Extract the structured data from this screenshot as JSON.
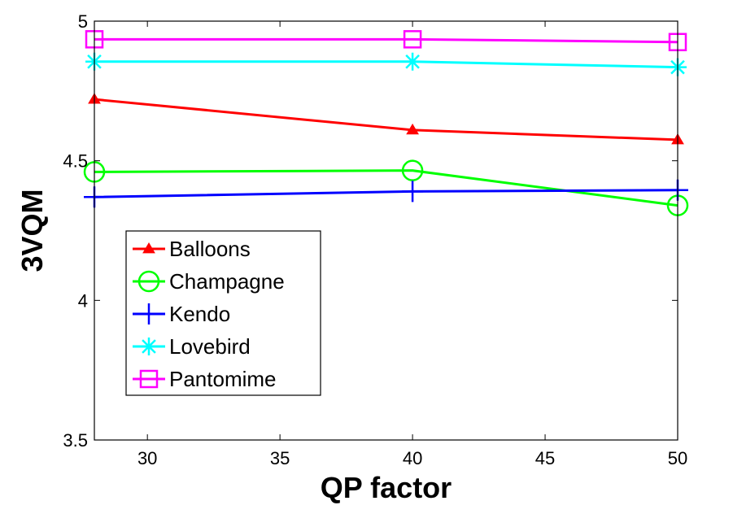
{
  "chart_data": {
    "type": "line",
    "title": "",
    "xlabel": "QP factor",
    "ylabel": "3VQM",
    "xlim": [
      28,
      50
    ],
    "ylim": [
      3.5,
      5
    ],
    "xticks": [
      30,
      35,
      40,
      45,
      50
    ],
    "xtick_labels": [
      "30",
      "35",
      "40",
      "45",
      "50"
    ],
    "yticks": [
      3.5,
      4,
      4.5,
      5
    ],
    "ytick_labels": [
      "3.5",
      "4",
      "4.5",
      "5"
    ],
    "grid": false,
    "legend_position": "lower-left",
    "x": [
      28,
      40,
      50
    ],
    "series": [
      {
        "name": "Balloons",
        "color": "#ff0000",
        "marker": "triangle",
        "values": [
          4.72,
          4.61,
          4.575
        ]
      },
      {
        "name": "Champagne",
        "color": "#00ff00",
        "marker": "circle",
        "values": [
          4.46,
          4.465,
          4.34
        ]
      },
      {
        "name": "Kendo",
        "color": "#0000ff",
        "marker": "plus",
        "values": [
          4.37,
          4.39,
          4.395
        ]
      },
      {
        "name": "Lovebird",
        "color": "#00ffff",
        "marker": "asterisk",
        "values": [
          4.855,
          4.855,
          4.835
        ]
      },
      {
        "name": "Pantomime",
        "color": "#ff00ff",
        "marker": "square",
        "values": [
          4.935,
          4.935,
          4.925
        ]
      }
    ]
  }
}
